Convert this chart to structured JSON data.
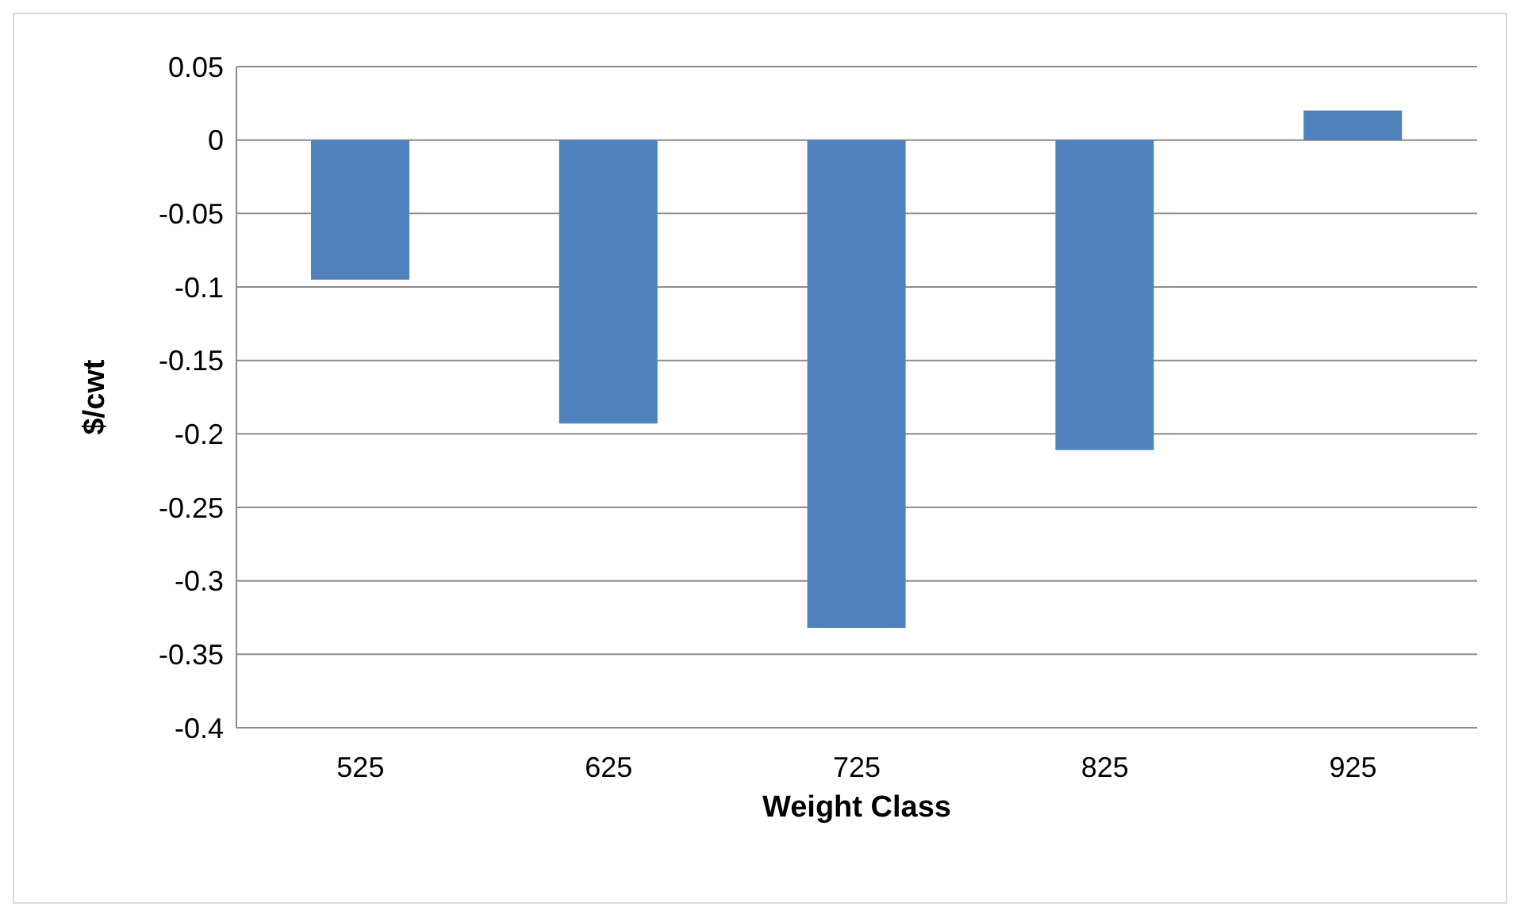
{
  "chart_data": {
    "type": "bar",
    "xlabel": "Weight Class",
    "ylabel": "$/cwt",
    "categories": [
      "525",
      "625",
      "725",
      "825",
      "925"
    ],
    "values": [
      -0.095,
      -0.193,
      -0.332,
      -0.211,
      0.02
    ],
    "color": "#4f81bd",
    "ylim": [
      -0.4,
      0.05
    ],
    "yticks": [
      -0.4,
      -0.35,
      -0.3,
      -0.25,
      -0.2,
      -0.15,
      -0.1,
      -0.05,
      0,
      0.05
    ],
    "grid": "y"
  }
}
